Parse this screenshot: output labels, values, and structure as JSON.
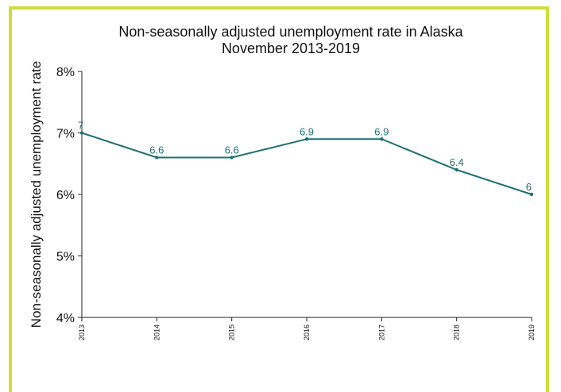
{
  "chart_data": {
    "type": "line",
    "title": "Non-seasonally adjusted unemployment rate in Alaska",
    "subtitle": "November 2013-2019",
    "ylabel": "Non-seasonally adjusted unemployment rate",
    "xlabel": "",
    "categories": [
      "2013",
      "2014",
      "2015",
      "2016",
      "2017",
      "2018",
      "2019"
    ],
    "values": [
      7,
      6.6,
      6.6,
      6.9,
      6.9,
      6.4,
      6
    ],
    "data_labels": [
      "7",
      "6.6",
      "6.6",
      "6.9",
      "6.9",
      "6.4",
      "6"
    ],
    "ylim": [
      4,
      8
    ],
    "yticks": [
      4,
      5,
      6,
      7,
      8
    ],
    "ytick_labels": [
      "4%",
      "5%",
      "6%",
      "7%",
      "8%"
    ],
    "grid": false,
    "legend": "none",
    "line_color": "#1f6f73",
    "frame_color": "#cfdc3a"
  }
}
